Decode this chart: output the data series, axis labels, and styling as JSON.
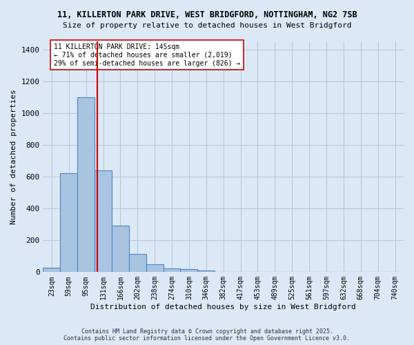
{
  "title_line1": "11, KILLERTON PARK DRIVE, WEST BRIDGFORD, NOTTINGHAM, NG2 7SB",
  "title_line2": "Size of property relative to detached houses in West Bridgford",
  "xlabel": "Distribution of detached houses by size in West Bridgford",
  "ylabel": "Number of detached properties",
  "bin_labels": [
    "23sqm",
    "59sqm",
    "95sqm",
    "131sqm",
    "166sqm",
    "202sqm",
    "238sqm",
    "274sqm",
    "310sqm",
    "346sqm",
    "382sqm",
    "417sqm",
    "453sqm",
    "489sqm",
    "525sqm",
    "561sqm",
    "597sqm",
    "632sqm",
    "668sqm",
    "704sqm",
    "740sqm"
  ],
  "bar_values": [
    28,
    620,
    1100,
    640,
    290,
    115,
    48,
    25,
    20,
    10,
    0,
    0,
    0,
    0,
    0,
    0,
    0,
    0,
    0,
    0,
    0
  ],
  "bar_color": "#a8c4e0",
  "bar_edge_color": "#4a86c8",
  "bg_color": "#dce8f5",
  "grid_color": "#b8c8dc",
  "vline_color": "#cc0000",
  "vline_pos": 2.65,
  "annotation_text": "11 KILLERTON PARK DRIVE: 145sqm\n← 71% of detached houses are smaller (2,019)\n29% of semi-detached houses are larger (826) →",
  "annotation_box_color": "#ffffff",
  "annotation_box_edge": "#cc0000",
  "ylim": [
    0,
    1450
  ],
  "yticks": [
    0,
    200,
    400,
    600,
    800,
    1000,
    1200,
    1400
  ],
  "footer_line1": "Contains HM Land Registry data © Crown copyright and database right 2025.",
  "footer_line2": "Contains public sector information licensed under the Open Government Licence v3.0."
}
